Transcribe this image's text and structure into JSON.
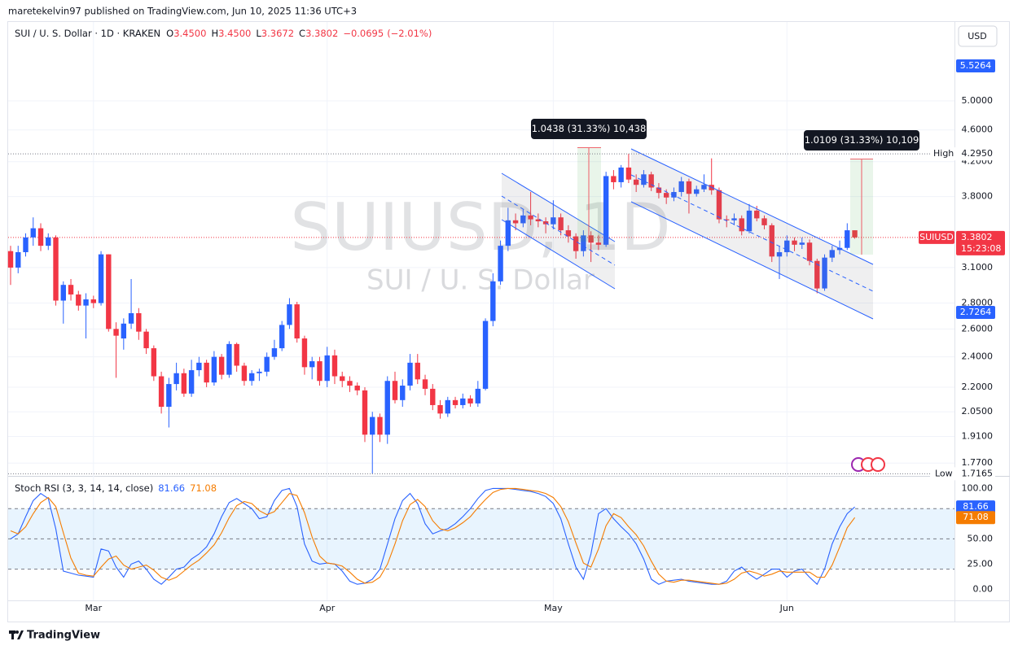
{
  "header": {
    "publisher": "maretekelvin97 published on TradingView.com, Jun 10, 2025 11:36 UTC+3",
    "logo": "TradingView"
  },
  "chart_data": [
    {
      "type": "candlestick",
      "title": "SUIUSD, 1D",
      "subtitle": "SUI / U. S. Dollar",
      "symbol": "SUI / U. S. Dollar · 1D · KRAKEN",
      "legend_values": [
        {
          "key": "O",
          "value": 3.45,
          "label": "3.4500"
        },
        {
          "key": "H",
          "value": 3.45,
          "label": "3.4500"
        },
        {
          "key": "L",
          "value": 3.3672,
          "label": "3.3672"
        },
        {
          "key": "C",
          "value": 3.3802,
          "label": "3.3802"
        }
      ],
      "change": {
        "value": -0.0695,
        "label": "−0.0695"
      },
      "change_pct": {
        "value": -2.01,
        "label": "(−2.01%)"
      },
      "currency": "USD",
      "log_scale": true,
      "grid": true,
      "up_color": "#2962ff",
      "down_color": "#f23645",
      "categories": [
        null,
        null,
        null,
        null,
        null,
        null,
        null,
        null,
        null,
        null,
        null,
        "Mar",
        null,
        null,
        null,
        null,
        null,
        null,
        null,
        null,
        null,
        null,
        null,
        null,
        null,
        null,
        null,
        null,
        null,
        null,
        null,
        null,
        null,
        null,
        null,
        null,
        null,
        null,
        null,
        null,
        null,
        null,
        "Apr",
        null,
        null,
        null,
        null,
        null,
        null,
        null,
        null,
        null,
        null,
        null,
        null,
        null,
        null,
        null,
        null,
        null,
        null,
        null,
        null,
        null,
        null,
        null,
        null,
        null,
        null,
        null,
        null,
        null,
        "May",
        null,
        null,
        null,
        null,
        null,
        null,
        null,
        null,
        null,
        null,
        null,
        null,
        null,
        null,
        null,
        null,
        null,
        null,
        null,
        null,
        null,
        null,
        null,
        null,
        null,
        null,
        null,
        null,
        null,
        null,
        "Jun",
        null,
        null,
        null,
        null,
        null,
        null,
        null,
        null,
        null
      ],
      "open": [
        3.25,
        3.1,
        3.24,
        3.38,
        3.47,
        3.3,
        3.38,
        2.82,
        2.95,
        2.87,
        2.78,
        2.83,
        2.8,
        3.22,
        2.6,
        2.53,
        2.64,
        2.72,
        2.58,
        2.46,
        2.27,
        2.08,
        2.22,
        2.29,
        2.16,
        2.31,
        2.36,
        2.23,
        2.4,
        2.28,
        2.49,
        2.34,
        2.24,
        2.29,
        2.3,
        2.4,
        2.46,
        2.63,
        2.79,
        2.53,
        2.33,
        2.37,
        2.24,
        2.41,
        2.27,
        2.24,
        2.21,
        2.18,
        1.92,
        2.02,
        1.92,
        2.24,
        2.12,
        2.21,
        2.36,
        2.25,
        2.19,
        2.09,
        2.04,
        2.12,
        2.09,
        2.13,
        2.1,
        2.19,
        2.66,
        2.98,
        3.3,
        3.55,
        3.52,
        3.6,
        3.56,
        3.54,
        3.51,
        3.58,
        3.45,
        3.39,
        3.25,
        3.4,
        3.33,
        3.31,
        4.03,
        3.96,
        4.13,
        3.99,
        3.93,
        4.05,
        3.9,
        3.84,
        3.79,
        3.85,
        3.97,
        3.83,
        3.88,
        3.93,
        3.87,
        3.56,
        3.55,
        3.57,
        3.44,
        3.65,
        3.57,
        3.5,
        3.2,
        3.24,
        3.35,
        3.31,
        3.33,
        3.16,
        2.92,
        3.19,
        3.26,
        3.28,
        3.45
      ],
      "high": [
        3.3,
        3.3,
        3.42,
        3.58,
        3.52,
        3.42,
        3.4,
        2.98,
        3.0,
        2.9,
        2.88,
        2.86,
        3.25,
        3.22,
        2.65,
        2.68,
        3.0,
        2.76,
        2.6,
        2.48,
        2.3,
        2.26,
        2.36,
        2.32,
        2.38,
        2.4,
        2.38,
        2.44,
        2.42,
        2.51,
        2.5,
        2.36,
        2.31,
        2.32,
        2.43,
        2.52,
        2.66,
        2.84,
        2.81,
        2.55,
        2.4,
        2.4,
        2.47,
        2.45,
        2.3,
        2.27,
        2.23,
        2.2,
        2.05,
        2.04,
        2.27,
        2.3,
        2.25,
        2.42,
        2.42,
        2.28,
        2.22,
        2.12,
        2.14,
        2.14,
        2.16,
        2.15,
        2.24,
        2.68,
        3.05,
        3.35,
        3.68,
        3.62,
        3.66,
        3.85,
        3.62,
        3.58,
        3.76,
        3.62,
        3.5,
        3.42,
        3.45,
        3.44,
        3.4,
        4.08,
        4.1,
        4.16,
        4.295,
        4.05,
        4.1,
        4.08,
        3.95,
        3.88,
        3.9,
        4.02,
        4.0,
        3.92,
        4.05,
        4.24,
        3.9,
        3.6,
        3.62,
        3.6,
        3.72,
        3.7,
        3.6,
        3.52,
        3.3,
        3.4,
        3.38,
        3.38,
        3.36,
        3.18,
        3.22,
        3.3,
        3.35,
        3.52,
        3.45
      ],
      "low": [
        2.95,
        3.05,
        3.2,
        3.3,
        3.25,
        3.26,
        2.78,
        2.64,
        2.82,
        2.74,
        2.53,
        2.76,
        2.78,
        2.58,
        2.26,
        2.45,
        2.6,
        2.52,
        2.42,
        2.24,
        2.04,
        1.96,
        2.18,
        2.14,
        2.14,
        2.27,
        2.2,
        2.21,
        2.25,
        2.26,
        2.3,
        2.21,
        2.21,
        2.24,
        2.27,
        2.38,
        2.44,
        2.6,
        2.5,
        2.28,
        2.25,
        2.21,
        2.2,
        2.22,
        2.2,
        2.17,
        2.15,
        1.88,
        1.7165,
        1.88,
        1.87,
        2.1,
        2.08,
        2.18,
        2.22,
        2.15,
        2.06,
        2.01,
        2.02,
        2.07,
        2.07,
        2.08,
        2.08,
        2.18,
        2.62,
        2.95,
        3.25,
        3.45,
        3.48,
        3.5,
        3.48,
        3.42,
        3.46,
        3.4,
        3.33,
        3.18,
        3.2,
        3.15,
        3.26,
        3.29,
        3.88,
        3.9,
        3.95,
        3.85,
        3.9,
        3.86,
        3.78,
        3.72,
        3.75,
        3.8,
        3.62,
        3.8,
        3.85,
        3.82,
        3.52,
        3.48,
        3.5,
        3.4,
        3.42,
        3.54,
        3.46,
        3.15,
        3.0,
        3.2,
        3.25,
        3.27,
        3.12,
        2.88,
        2.9,
        3.15,
        3.22,
        3.26,
        3.3672
      ],
      "close": [
        3.1,
        3.24,
        3.38,
        3.47,
        3.3,
        3.38,
        2.82,
        2.95,
        2.87,
        2.78,
        2.83,
        2.8,
        3.22,
        2.6,
        2.55,
        2.64,
        2.72,
        2.58,
        2.46,
        2.27,
        2.08,
        2.22,
        2.29,
        2.16,
        2.31,
        2.36,
        2.23,
        2.4,
        2.28,
        2.49,
        2.34,
        2.24,
        2.29,
        2.3,
        2.4,
        2.46,
        2.63,
        2.79,
        2.53,
        2.33,
        2.37,
        2.24,
        2.41,
        2.27,
        2.24,
        2.21,
        2.18,
        1.92,
        2.02,
        1.92,
        2.24,
        2.12,
        2.21,
        2.36,
        2.25,
        2.19,
        2.09,
        2.04,
        2.12,
        2.09,
        2.13,
        2.1,
        2.19,
        2.66,
        2.98,
        3.3,
        3.55,
        3.52,
        3.6,
        3.56,
        3.54,
        3.51,
        3.58,
        3.45,
        3.39,
        3.25,
        3.4,
        3.33,
        3.31,
        4.03,
        3.96,
        4.13,
        3.99,
        3.93,
        4.05,
        3.9,
        3.84,
        3.79,
        3.85,
        3.97,
        3.83,
        3.88,
        3.93,
        3.87,
        3.56,
        3.55,
        3.57,
        3.44,
        3.65,
        3.57,
        3.5,
        3.2,
        3.24,
        3.35,
        3.31,
        3.33,
        3.16,
        2.92,
        3.19,
        3.26,
        3.28,
        3.45,
        3.3802
      ],
      "ylim": [
        1.7,
        6.25
      ],
      "yticks": [
        {
          "value": 5,
          "label": "5.0000"
        },
        {
          "value": 4.6,
          "label": "4.6000"
        },
        {
          "value": 4.2,
          "label": "4.2000"
        },
        {
          "value": 3.8,
          "label": "3.8000"
        },
        {
          "value": 3.1,
          "label": "3.1000"
        },
        {
          "value": 2.8,
          "label": "2.8000"
        },
        {
          "value": 2.6,
          "label": "2.6000"
        },
        {
          "value": 2.4,
          "label": "2.4000"
        },
        {
          "value": 2.2,
          "label": "2.2000"
        },
        {
          "value": 2.05,
          "label": "2.0500"
        },
        {
          "value": 1.91,
          "label": "1.9100"
        },
        {
          "value": 1.77,
          "label": "1.7700"
        }
      ],
      "price_tags": [
        {
          "value": 5.5264,
          "label": "5.5264"
        },
        {
          "value": 2.7264,
          "label": "2.7264"
        }
      ],
      "high_marker": {
        "text": "High",
        "value": 4.295,
        "label": "4.2950"
      },
      "low_marker": {
        "text": "Low",
        "value": 1.7165,
        "label": "1.7165"
      },
      "last_price": {
        "name": "SUIUSD",
        "value": 3.3802,
        "label": "3.3802",
        "countdown": "15:23:08"
      },
      "measurements": [
        "1.0438 (31.33%) 10,438",
        "1.0109 (31.33%) 10,109"
      ]
    },
    {
      "type": "line",
      "title": "Stoch RSI (3, 3, 14, 14, close)",
      "series": [
        {
          "color": "#2962ff",
          "values": [
            50,
            55,
            72,
            88,
            95,
            90,
            60,
            18,
            16,
            14,
            13,
            12,
            40,
            38,
            22,
            12,
            25,
            28,
            20,
            10,
            5,
            12,
            20,
            22,
            30,
            35,
            42,
            55,
            72,
            86,
            90,
            85,
            80,
            70,
            72,
            88,
            98,
            100,
            82,
            45,
            28,
            25,
            26,
            25,
            18,
            8,
            5,
            6,
            10,
            20,
            45,
            70,
            88,
            95,
            85,
            65,
            55,
            58,
            60,
            65,
            72,
            80,
            90,
            98,
            100,
            100,
            100,
            99,
            98,
            97,
            95,
            92,
            85,
            70,
            45,
            22,
            10,
            35,
            75,
            80,
            70,
            62,
            55,
            45,
            30,
            10,
            5,
            8,
            9,
            10,
            8,
            7,
            6,
            5,
            5,
            8,
            18,
            22,
            15,
            10,
            15,
            20,
            20,
            12,
            18,
            20,
            12,
            5,
            20,
            45,
            62,
            75,
            81.66
          ]
        },
        {
          "color": "#f57c00",
          "values": [
            58,
            55,
            62,
            75,
            86,
            91,
            82,
            56,
            31,
            16,
            14,
            13,
            22,
            30,
            33,
            24,
            20,
            22,
            24,
            19,
            12,
            9,
            12,
            18,
            24,
            29,
            36,
            44,
            56,
            71,
            83,
            87,
            85,
            78,
            74,
            77,
            86,
            95,
            93,
            76,
            52,
            33,
            26,
            25,
            23,
            17,
            10,
            6,
            7,
            12,
            25,
            45,
            68,
            84,
            89,
            82,
            68,
            60,
            58,
            61,
            66,
            72,
            81,
            89,
            96,
            99,
            100,
            100,
            99,
            98,
            97,
            95,
            91,
            82,
            67,
            46,
            26,
            22,
            40,
            63,
            75,
            71,
            62,
            54,
            43,
            28,
            15,
            8,
            7,
            9,
            9,
            8,
            7,
            6,
            5,
            6,
            10,
            16,
            18,
            16,
            13,
            15,
            18,
            17,
            17,
            17,
            17,
            12,
            12,
            24,
            42,
            61,
            71.08
          ]
        }
      ],
      "ylim": [
        -11,
        110
      ],
      "yticks": [
        {
          "value": 0,
          "label": "0.00"
        },
        {
          "value": 25,
          "label": "25.00"
        },
        {
          "value": 50,
          "label": "50.00"
        },
        {
          "value": 100,
          "label": "100.00"
        }
      ],
      "band": [
        20,
        80
      ],
      "midline": 50
    }
  ]
}
